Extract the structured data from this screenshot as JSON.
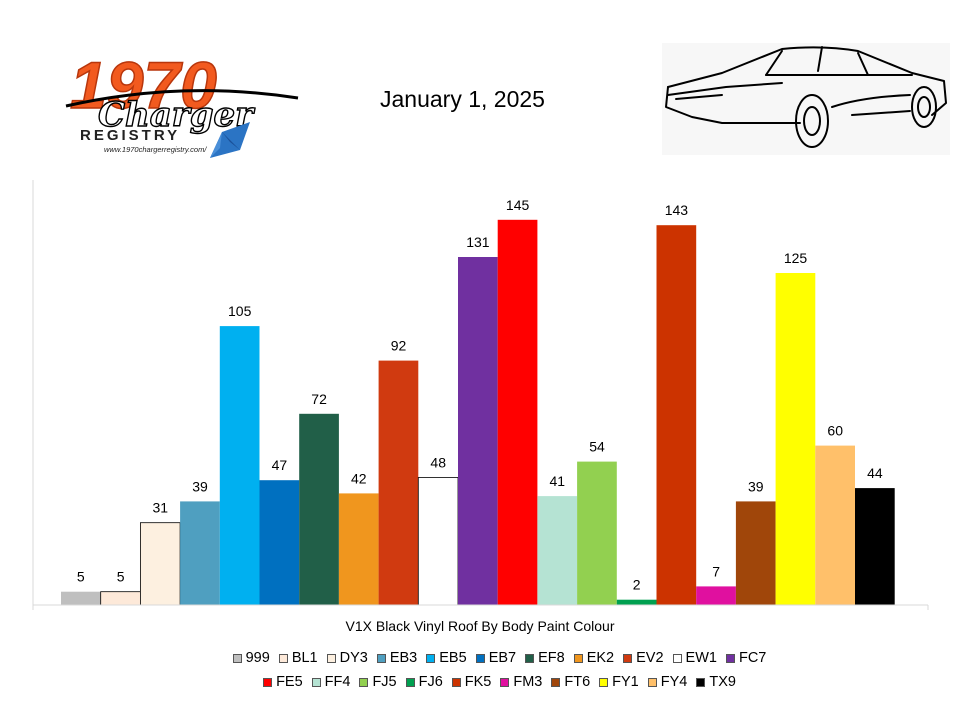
{
  "header": {
    "date": "January 1, 2025",
    "logo_number": "1970",
    "logo_script": "Charger",
    "logo_registry": "REGISTRY",
    "logo_url": "www.1970chargerregistry.com/"
  },
  "chart_data": {
    "type": "bar",
    "title": "",
    "xlabel": "V1X Black Vinyl Roof By Body Paint Colour",
    "ylabel": "",
    "ylim": [
      0,
      160
    ],
    "grid": false,
    "legend_position": "bottom",
    "categories": [
      "999",
      "BL1",
      "DY3",
      "EB3",
      "EB5",
      "EB7",
      "EF8",
      "EK2",
      "EV2",
      "EW1",
      "FC7",
      "FE5",
      "FF4",
      "FJ5",
      "FJ6",
      "FK5",
      "FM3",
      "FT6",
      "FY1",
      "FY4",
      "TX9"
    ],
    "values": [
      5,
      5,
      31,
      39,
      105,
      47,
      72,
      42,
      92,
      48,
      131,
      145,
      41,
      54,
      2,
      143,
      7,
      39,
      125,
      60,
      44
    ],
    "colors": [
      "#bfbfbf",
      "#fde9d9",
      "#fdf0e0",
      "#4f9fc0",
      "#00b0f0",
      "#0070c0",
      "#215f48",
      "#f0961e",
      "#d03a10",
      "#ffffff",
      "#7030a0",
      "#ff0000",
      "#b5e3d3",
      "#92d050",
      "#00a050",
      "#cc3300",
      "#e0109f",
      "#a0460a",
      "#ffff00",
      "#ffc06a",
      "#000000"
    ]
  }
}
